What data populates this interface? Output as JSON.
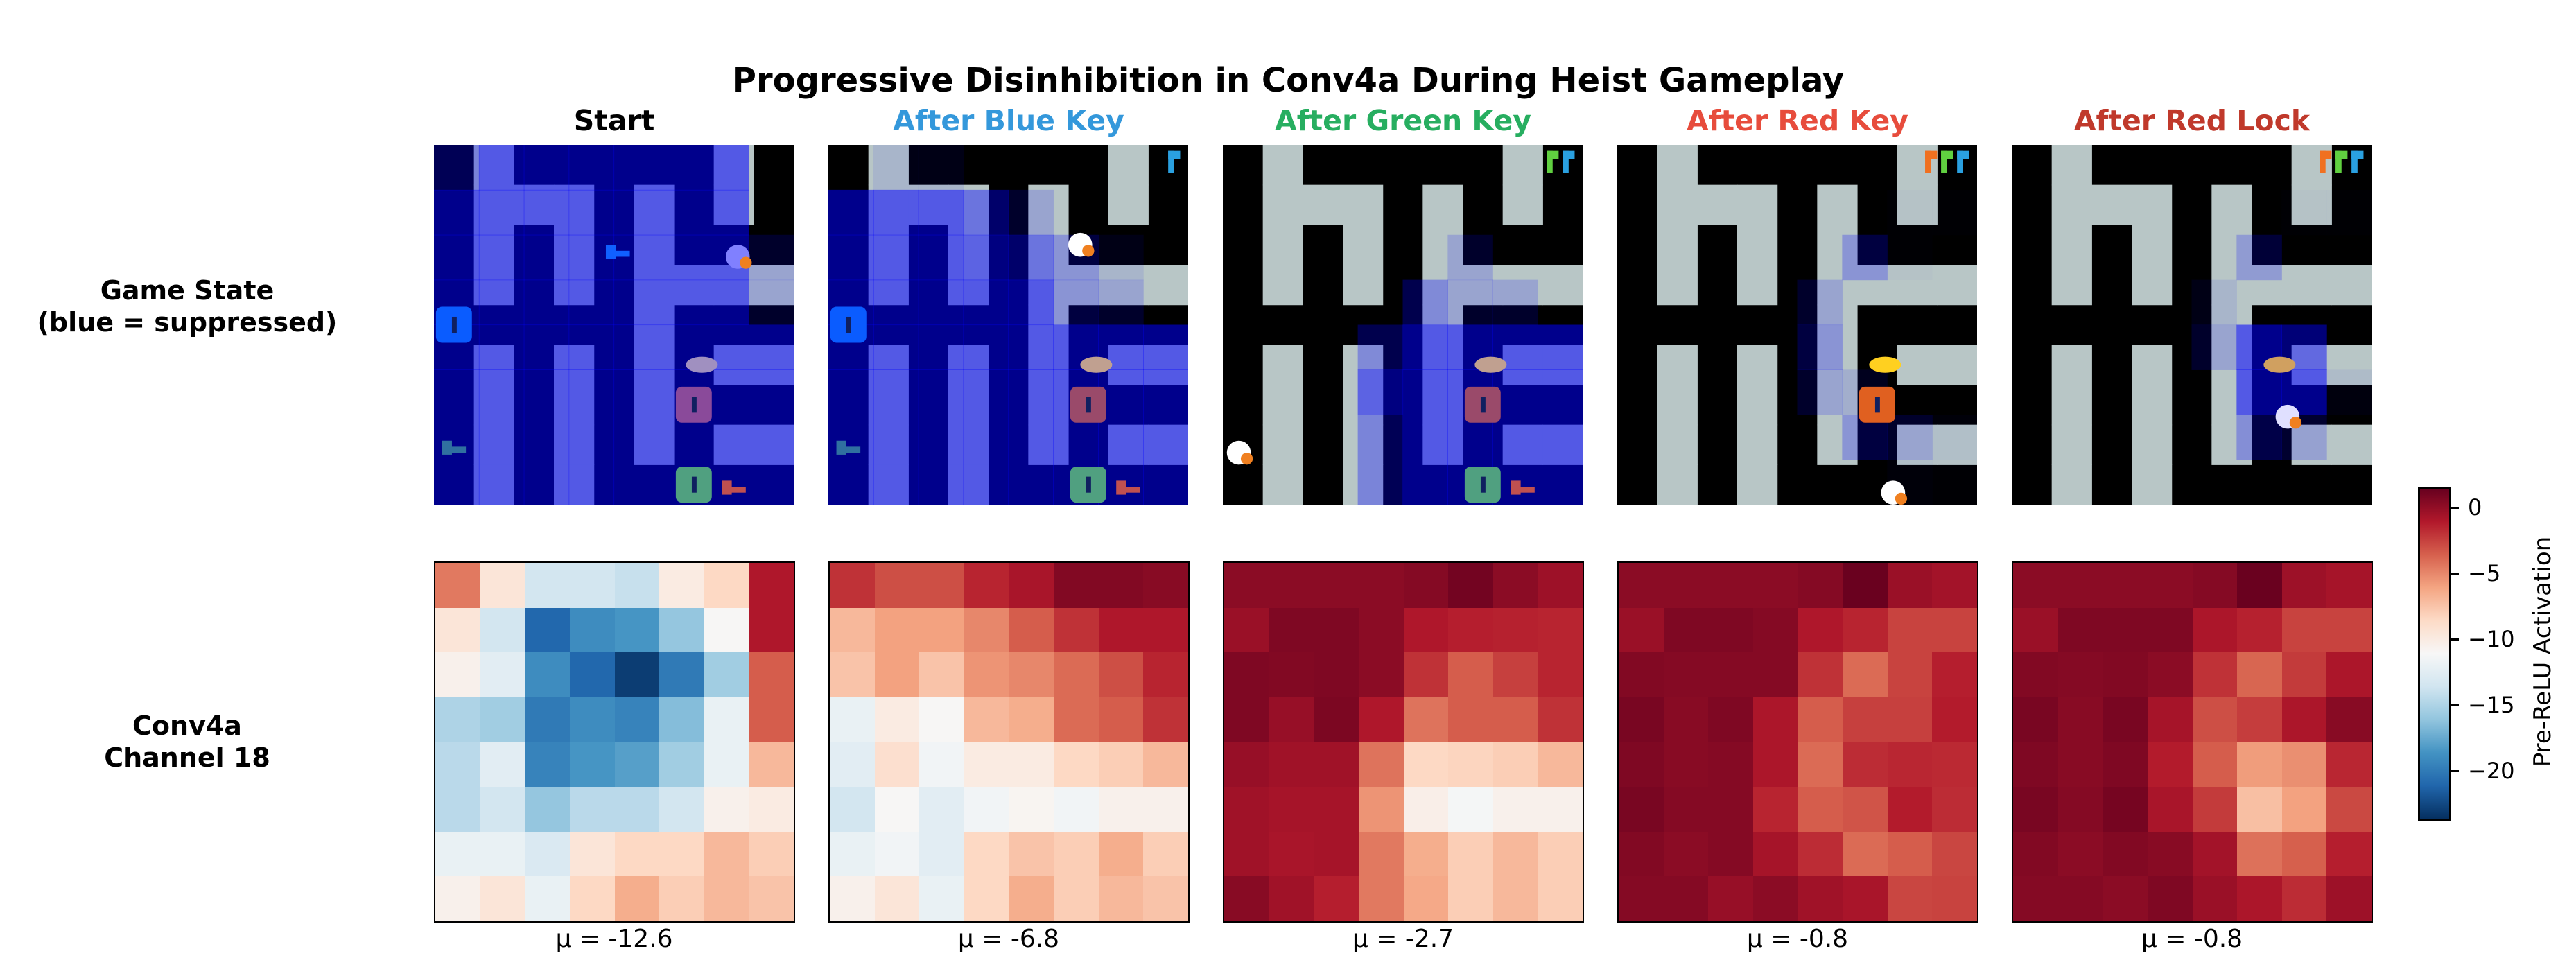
{
  "title": "Progressive Disinhibition in Conv4a During Heist Gameplay",
  "row_labels": {
    "game_state": [
      "Game State",
      "(blue = suppressed)"
    ],
    "activation": [
      "Conv4a",
      "Channel 18"
    ]
  },
  "colors": {
    "floor": "#b8c6c6",
    "wall": "#000000",
    "suppression_overlay": "#0000ff"
  },
  "chart_data": {
    "type": "heatmap",
    "title": "Progressive Disinhibition in Conv4a During Heist Gameplay",
    "colormap": "RdBu_r",
    "vmin": -23.6,
    "vmax": 1.4,
    "colorbar": {
      "label": "Pre-ReLU Activation",
      "ticks": [
        0,
        -5,
        -10,
        -15,
        -20
      ],
      "tick_labels": [
        "0",
        "−5",
        "−10",
        "−15",
        "−20"
      ]
    },
    "panels": [
      {
        "title": "Start",
        "color": "#000000",
        "mean": -12.6,
        "mean_label": "μ = -12.6",
        "values": [
          [
            -4.5,
            -9.5,
            -13.5,
            -13.5,
            -14,
            -10,
            -8.5,
            -1
          ],
          [
            -9.5,
            -13.5,
            -21,
            -19,
            -18.5,
            -16,
            -11,
            -1
          ],
          [
            -10.5,
            -12.5,
            -19,
            -21,
            -23,
            -20,
            -15.5,
            -3.5
          ],
          [
            -15,
            -15.5,
            -20,
            -19,
            -19.5,
            -16.5,
            -12,
            -3.5
          ],
          [
            -14.5,
            -12.5,
            -19.5,
            -18.5,
            -18,
            -15.5,
            -12,
            -7
          ],
          [
            -14.5,
            -13.5,
            -16,
            -14.5,
            -14.5,
            -13.5,
            -10.5,
            -10
          ],
          [
            -12,
            -12,
            -13,
            -9.5,
            -8.5,
            -8.5,
            -7,
            -8
          ],
          [
            -10.5,
            -9.5,
            -12,
            -8.5,
            -6.5,
            -8,
            -7,
            -7.5
          ]
        ]
      },
      {
        "title": "After Blue Key",
        "color": "#3498db",
        "mean": -6.8,
        "mean_label": "μ = -6.8",
        "values": [
          [
            -2,
            -3,
            -3,
            -1.5,
            -0.8,
            0.5,
            0.5,
            0.3
          ],
          [
            -7,
            -6,
            -6,
            -5,
            -3.5,
            -2,
            -1,
            -1
          ],
          [
            -7.5,
            -6,
            -7.5,
            -5.5,
            -5,
            -4,
            -3,
            -1.5
          ],
          [
            -12,
            -10,
            -11,
            -7,
            -6.5,
            -4,
            -3.5,
            -2
          ],
          [
            -12.5,
            -9,
            -11.5,
            -10,
            -10,
            -8.5,
            -8,
            -7
          ],
          [
            -13.5,
            -11,
            -12.5,
            -11.5,
            -10.8,
            -11.5,
            -10.5,
            -10.5
          ],
          [
            -12,
            -11.5,
            -12.5,
            -8.5,
            -7.5,
            -8,
            -6.5,
            -8
          ],
          [
            -10.5,
            -9.5,
            -12,
            -8.5,
            -6.5,
            -8,
            -7,
            -7.5
          ]
        ]
      },
      {
        "title": "After Green Key",
        "color": "#27ae60",
        "mean": -2.7,
        "mean_label": "μ = -2.7",
        "values": [
          [
            0.2,
            0.2,
            0.2,
            0.2,
            0.4,
            1.0,
            0.2,
            -0.4
          ],
          [
            -0.3,
            0.6,
            0.6,
            0.2,
            -1,
            -1.3,
            -1.4,
            -1.5
          ],
          [
            0.6,
            0.5,
            0.6,
            0.2,
            -2,
            -3.5,
            -2.5,
            -1.5
          ],
          [
            0.6,
            -0.2,
            0.7,
            -1,
            -4.3,
            -3.5,
            -3.5,
            -2
          ],
          [
            -0.2,
            -0.5,
            -0.5,
            -4.3,
            -8.5,
            -8.3,
            -8,
            -7
          ],
          [
            -0.5,
            -0.7,
            -0.7,
            -5.5,
            -10.3,
            -11.3,
            -10.5,
            -10.5
          ],
          [
            -0.5,
            -0.8,
            -0.7,
            -4.5,
            -6.5,
            -8,
            -7,
            -8
          ],
          [
            0.3,
            -0.5,
            -1.3,
            -4.5,
            -6.3,
            -8,
            -7,
            -8
          ]
        ]
      },
      {
        "title": "After Red Key",
        "color": "#e74c3c",
        "mean": -0.8,
        "mean_label": "μ = -0.8",
        "values": [
          [
            0.2,
            0.2,
            0.2,
            0.2,
            0.4,
            1.3,
            -0.3,
            -0.6
          ],
          [
            -0.3,
            0.6,
            0.6,
            0.4,
            -1,
            -1.5,
            -2.6,
            -2.6
          ],
          [
            0.5,
            0.4,
            0.4,
            0.4,
            -2,
            -4,
            -2.6,
            -1.3
          ],
          [
            0.8,
            0.3,
            0.6,
            -0.9,
            -3.5,
            -2.5,
            -2.5,
            -1.2
          ],
          [
            0.6,
            0.3,
            0.4,
            -0.9,
            -4,
            -1.8,
            -1.6,
            -1.7
          ],
          [
            0.8,
            0.4,
            0.4,
            -1.5,
            -3.5,
            -3.2,
            -1.2,
            -1.8
          ],
          [
            0.5,
            0.2,
            0.4,
            -0.7,
            -1.8,
            -4,
            -3.5,
            -2.7
          ],
          [
            0.4,
            0.4,
            -0.2,
            0.2,
            -0.5,
            -0.8,
            -2.7,
            -2.6
          ]
        ]
      },
      {
        "title": "After Red Lock",
        "color": "#c0392b",
        "mean": -0.8,
        "mean_label": "μ = -0.8",
        "values": [
          [
            0.2,
            0.2,
            0.2,
            0.2,
            0.4,
            1.3,
            -0.4,
            -0.7
          ],
          [
            -0.3,
            0.6,
            0.6,
            0.6,
            -0.9,
            -1.4,
            -2.6,
            -2.6
          ],
          [
            0.5,
            0.4,
            0.5,
            0.2,
            -2,
            -3.8,
            -2.3,
            -0.9
          ],
          [
            0.8,
            0.3,
            0.8,
            -0.7,
            -3,
            -2.4,
            -0.9,
            0.3
          ],
          [
            0.6,
            0.3,
            0.6,
            -1.2,
            -3.5,
            -5.8,
            -5.3,
            -1.6
          ],
          [
            0.8,
            0.4,
            0.9,
            -0.8,
            -2.3,
            -7.3,
            -6,
            -2.8
          ],
          [
            0.5,
            0.2,
            0.5,
            0.3,
            -0.6,
            -4.2,
            -3.6,
            -1.3
          ],
          [
            0.4,
            0.4,
            0.2,
            0.6,
            -0.3,
            -0.9,
            -1.8,
            -0.4
          ]
        ]
      }
    ]
  }
}
